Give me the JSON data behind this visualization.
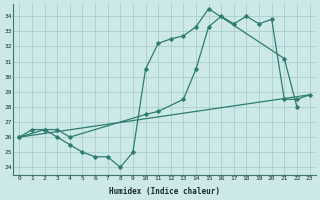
{
  "xlabel": "Humidex (Indice chaleur)",
  "bg_color": "#cce8e8",
  "grid_color": "#aacece",
  "line_color": "#2e7d6e",
  "xlim": [
    -0.5,
    23.5
  ],
  "ylim": [
    23.5,
    34.8
  ],
  "yticks": [
    24,
    25,
    26,
    27,
    28,
    29,
    30,
    31,
    32,
    33,
    34
  ],
  "xticks": [
    0,
    1,
    2,
    3,
    4,
    5,
    6,
    7,
    8,
    9,
    10,
    11,
    12,
    13,
    14,
    15,
    16,
    17,
    18,
    19,
    20,
    21,
    22,
    23
  ],
  "line1_x": [
    0,
    1,
    2,
    3,
    4,
    5,
    6,
    7,
    8,
    9,
    10,
    11,
    12,
    13,
    14,
    15,
    21,
    22
  ],
  "line1_y": [
    26.0,
    26.5,
    26.5,
    26.0,
    25.5,
    25.0,
    24.7,
    24.7,
    24.0,
    25.0,
    30.5,
    32.2,
    32.5,
    32.7,
    33.3,
    34.5,
    31.2,
    28.0
  ],
  "line2_x": [
    0,
    2,
    3,
    4,
    10,
    11,
    13,
    14,
    15,
    16,
    17,
    18,
    19,
    20,
    21,
    22,
    23
  ],
  "line2_y": [
    26.0,
    26.5,
    26.5,
    26.0,
    27.5,
    27.7,
    28.5,
    30.5,
    33.3,
    34.0,
    33.5,
    34.0,
    33.5,
    33.8,
    28.5,
    28.5,
    28.8
  ],
  "line3_x": [
    0,
    23
  ],
  "line3_y": [
    26.0,
    28.8
  ]
}
